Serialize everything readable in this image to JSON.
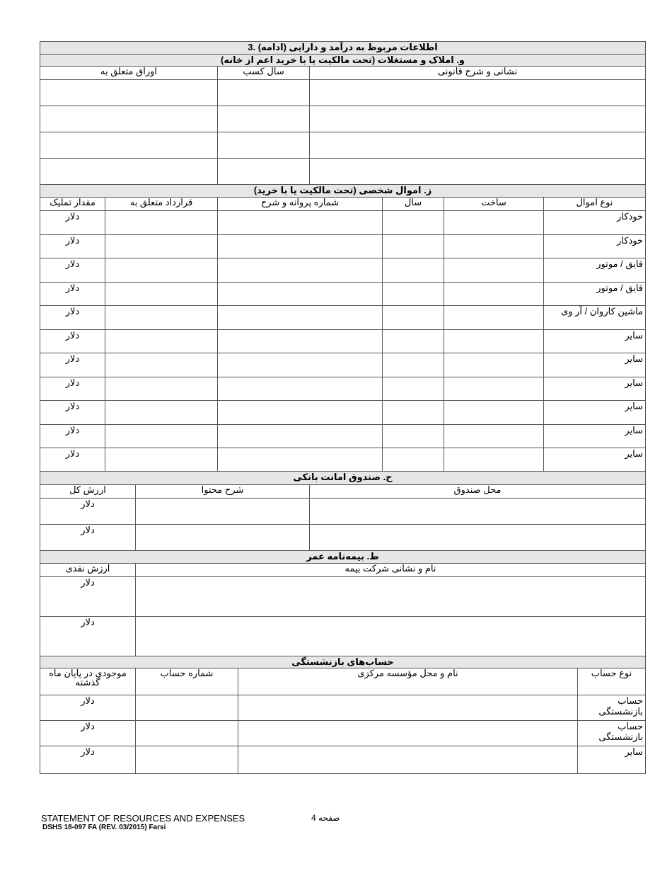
{
  "sections": [
    {
      "id": "real-estate",
      "titles": [
        "3. اطلاعات مربوط به درآمد و دارایی (ادامه)",
        "و. املاک و مستغلات (تحت مالکیت یا با خرید اعم از خانه)"
      ],
      "headers": [
        "اوراق متعلق به",
        "سال کسب",
        "نشانی و شرح قانونی"
      ],
      "rows": [
        [
          "",
          "",
          ""
        ],
        [
          "",
          "",
          ""
        ],
        [
          "",
          "",
          ""
        ],
        [
          "",
          "",
          ""
        ]
      ]
    },
    {
      "id": "personal-property",
      "titles": [
        "ز. اموال شخصی (تحت مالکیت یا با خرید)"
      ],
      "headers": [
        "مقدار تملیک",
        "قرارداد متعلق به",
        "شماره پروانه و شرح",
        "سال",
        "ساخت",
        "نوع اموال"
      ],
      "rows": [
        [
          "دلار",
          "",
          "",
          "",
          "",
          "خودکار"
        ],
        [
          "دلار",
          "",
          "",
          "",
          "",
          "خودکار"
        ],
        [
          "دلار",
          "",
          "",
          "",
          "",
          "قایق / موتور"
        ],
        [
          "دلار",
          "",
          "",
          "",
          "",
          "قایق / موتور"
        ],
        [
          "دلار",
          "",
          "",
          "",
          "",
          "ماشین کاروان / آر وی"
        ],
        [
          "دلار",
          "",
          "",
          "",
          "",
          "سایر"
        ],
        [
          "دلار",
          "",
          "",
          "",
          "",
          "سایر"
        ],
        [
          "دلار",
          "",
          "",
          "",
          "",
          "سایر"
        ],
        [
          "دلار",
          "",
          "",
          "",
          "",
          "سایر"
        ],
        [
          "دلار",
          "",
          "",
          "",
          "",
          "سایر"
        ],
        [
          "دلار",
          "",
          "",
          "",
          "",
          "سایر"
        ]
      ]
    },
    {
      "id": "safe-deposit",
      "titles": [
        "ح. صندوق امانت بانکی"
      ],
      "headers": [
        "ارزش کل",
        "شرح محتوا",
        "محل صندوق"
      ],
      "rows": [
        [
          "دلار",
          "",
          ""
        ],
        [
          "دلار",
          "",
          ""
        ]
      ]
    },
    {
      "id": "life-insurance",
      "titles": [
        "ط. بیمه‌نامه عمر"
      ],
      "headers": [
        "ارزش نقدی",
        "نام و نشانی شرکت بیمه"
      ],
      "rows": [
        [
          "دلار",
          ""
        ],
        [
          "دلار",
          ""
        ]
      ]
    },
    {
      "id": "retirement",
      "titles": [
        "حساب‌های بازنشستگی"
      ],
      "headers": [
        "موجودی در پایان ماه گذشته",
        "شماره حساب",
        "نام و محل مؤسسه مرکزی",
        "نوع حساب"
      ],
      "rows": [
        [
          "دلار",
          "",
          "",
          "حساب بازنشستگی"
        ],
        [
          "دلار",
          "",
          "",
          "حساب بازنشستگی"
        ],
        [
          "دلار",
          "",
          "",
          "سایر"
        ]
      ]
    }
  ],
  "footer": {
    "title": "STATEMENT OF RESOURCES AND EXPENSES",
    "page": "صفحه 4",
    "form": "DSHS 18-097 FA (REV. 03/2015) Farsi"
  }
}
